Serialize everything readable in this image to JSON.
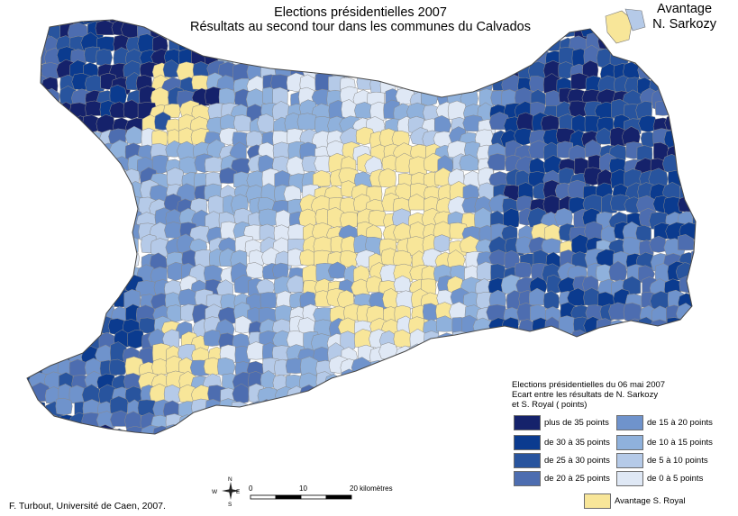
{
  "header": {
    "title": "Elections présidentielles 2007",
    "subtitle": "Résultats au second tour dans les communes du Calvados",
    "corner_line1": "Avantage",
    "corner_line2": "N. Sarkozy"
  },
  "legend": {
    "title_line1": "Elections présidentielles du 06 mai 2007",
    "title_line2": "Ecart entre les résultats de N. Sarkozy",
    "title_line3": "et S. Royal ( points)",
    "items": [
      {
        "label": "plus de 35 points",
        "color": "#15226b"
      },
      {
        "label": "de 30 à 35 points",
        "color": "#0b3b8f"
      },
      {
        "label": "de 25 à 30 points",
        "color": "#28549e"
      },
      {
        "label": "de 20 à 25 points",
        "color": "#4d6db0"
      },
      {
        "label": "de 15 à 20 points",
        "color": "#6f93cc"
      },
      {
        "label": "de 10 à 15 points",
        "color": "#8fb1dc"
      },
      {
        "label": "de 5 à 10 points",
        "color": "#b5cae8"
      },
      {
        "label": "de 0 à 5 points",
        "color": "#dfe8f5"
      },
      {
        "label": "Avantage S. Royal",
        "color": "#f8e699"
      }
    ]
  },
  "compass": {
    "n": "N",
    "s": "S",
    "e": "E",
    "w": "W"
  },
  "scale": {
    "labels": [
      "0",
      "10",
      "20 kilomètres"
    ]
  },
  "footer": {
    "credit": "F. Turbout, Université de Caen, 2007."
  }
}
